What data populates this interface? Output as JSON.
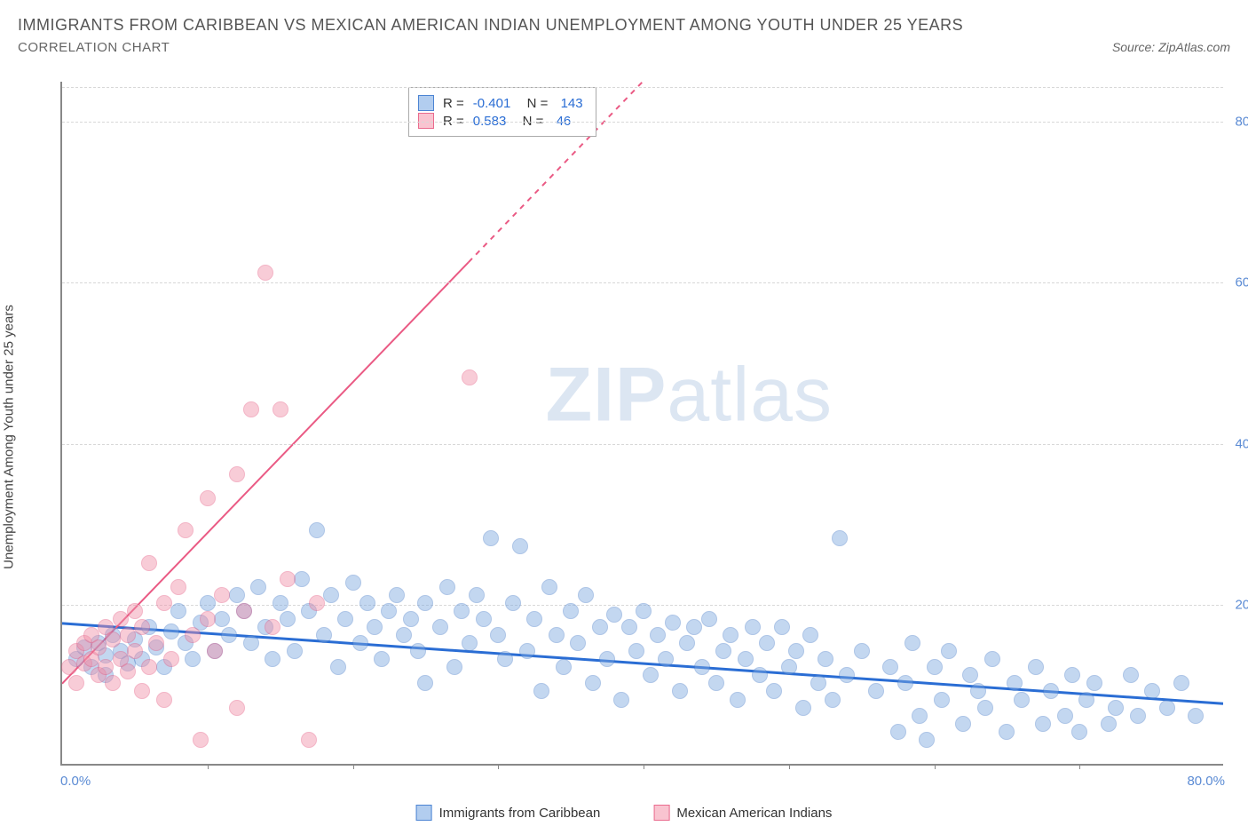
{
  "title": "IMMIGRANTS FROM CARIBBEAN VS MEXICAN AMERICAN INDIAN UNEMPLOYMENT AMONG YOUTH UNDER 25 YEARS",
  "subtitle": "CORRELATION CHART",
  "source": "Source: ZipAtlas.com",
  "ylabel": "Unemployment Among Youth under 25 years",
  "watermark_zip": "ZIP",
  "watermark_atlas": "atlas",
  "chart": {
    "type": "scatter",
    "xlim": [
      0,
      80
    ],
    "ylim": [
      0,
      85
    ],
    "x_min_label": "0.0%",
    "x_max_label": "80.0%",
    "yticks": [
      20,
      40,
      60,
      80
    ],
    "ytick_labels": [
      "20.0%",
      "40.0%",
      "60.0%",
      "80.0%"
    ],
    "xtick_positions": [
      10,
      20,
      30,
      40,
      50,
      60,
      70
    ],
    "background_color": "#ffffff",
    "grid_color": "#d8d8d8",
    "axis_color": "#888888",
    "point_radius": 9,
    "point_opacity": 0.45,
    "series": [
      {
        "name": "Immigrants from Caribbean",
        "fill_color": "#7ca8e0",
        "stroke_color": "#4c7fc9",
        "swatch_fill": "#b2cdef",
        "swatch_border": "#4c84d3",
        "r_label": "R =",
        "r_value": "-0.401",
        "n_label": "N =",
        "n_value": "143",
        "trend": {
          "x1": 0,
          "y1": 17.5,
          "x2": 80,
          "y2": 7.5,
          "color": "#2a6dd4",
          "width": 3,
          "dash": "none"
        },
        "points": [
          [
            1,
            13
          ],
          [
            1.5,
            14.5
          ],
          [
            2,
            12
          ],
          [
            2.5,
            15
          ],
          [
            3,
            13.5
          ],
          [
            3,
            11
          ],
          [
            3.5,
            16
          ],
          [
            4,
            14
          ],
          [
            4.5,
            12.5
          ],
          [
            5,
            15.5
          ],
          [
            5.5,
            13
          ],
          [
            6,
            17
          ],
          [
            6.5,
            14.5
          ],
          [
            7,
            12
          ],
          [
            7.5,
            16.5
          ],
          [
            8,
            19
          ],
          [
            8.5,
            15
          ],
          [
            9,
            13
          ],
          [
            9.5,
            17.5
          ],
          [
            10,
            20
          ],
          [
            10.5,
            14
          ],
          [
            11,
            18
          ],
          [
            11.5,
            16
          ],
          [
            12,
            21
          ],
          [
            12.5,
            19
          ],
          [
            13,
            15
          ],
          [
            13.5,
            22
          ],
          [
            14,
            17
          ],
          [
            14.5,
            13
          ],
          [
            15,
            20
          ],
          [
            15.5,
            18
          ],
          [
            16,
            14
          ],
          [
            16.5,
            23
          ],
          [
            17,
            19
          ],
          [
            17.5,
            29
          ],
          [
            18,
            16
          ],
          [
            18.5,
            21
          ],
          [
            19,
            12
          ],
          [
            19.5,
            18
          ],
          [
            20,
            22.5
          ],
          [
            20.5,
            15
          ],
          [
            21,
            20
          ],
          [
            21.5,
            17
          ],
          [
            22,
            13
          ],
          [
            22.5,
            19
          ],
          [
            23,
            21
          ],
          [
            23.5,
            16
          ],
          [
            24,
            18
          ],
          [
            24.5,
            14
          ],
          [
            25,
            20
          ],
          [
            25,
            10
          ],
          [
            26,
            17
          ],
          [
            26.5,
            22
          ],
          [
            27,
            12
          ],
          [
            27.5,
            19
          ],
          [
            28,
            15
          ],
          [
            28.5,
            21
          ],
          [
            29,
            18
          ],
          [
            29.5,
            28
          ],
          [
            30,
            16
          ],
          [
            30.5,
            13
          ],
          [
            31,
            20
          ],
          [
            31.5,
            27
          ],
          [
            32,
            14
          ],
          [
            32.5,
            18
          ],
          [
            33,
            9
          ],
          [
            33.5,
            22
          ],
          [
            34,
            16
          ],
          [
            34.5,
            12
          ],
          [
            35,
            19
          ],
          [
            35.5,
            15
          ],
          [
            36,
            21
          ],
          [
            36.5,
            10
          ],
          [
            37,
            17
          ],
          [
            37.5,
            13
          ],
          [
            38,
            18.5
          ],
          [
            38.5,
            8
          ],
          [
            39,
            17
          ],
          [
            39.5,
            14
          ],
          [
            40,
            19
          ],
          [
            40.5,
            11
          ],
          [
            41,
            16
          ],
          [
            41.5,
            13
          ],
          [
            42,
            17.5
          ],
          [
            42.5,
            9
          ],
          [
            43,
            15
          ],
          [
            43.5,
            17
          ],
          [
            44,
            12
          ],
          [
            44.5,
            18
          ],
          [
            45,
            10
          ],
          [
            45.5,
            14
          ],
          [
            46,
            16
          ],
          [
            46.5,
            8
          ],
          [
            47,
            13
          ],
          [
            47.5,
            17
          ],
          [
            48,
            11
          ],
          [
            48.5,
            15
          ],
          [
            49,
            9
          ],
          [
            49.5,
            17
          ],
          [
            50,
            12
          ],
          [
            50.5,
            14
          ],
          [
            51,
            7
          ],
          [
            51.5,
            16
          ],
          [
            52,
            10
          ],
          [
            52.5,
            13
          ],
          [
            53,
            8
          ],
          [
            53.5,
            28
          ],
          [
            54,
            11
          ],
          [
            55,
            14
          ],
          [
            56,
            9
          ],
          [
            57,
            12
          ],
          [
            57.5,
            4
          ],
          [
            58,
            10
          ],
          [
            58.5,
            15
          ],
          [
            59,
            6
          ],
          [
            59.5,
            3
          ],
          [
            60,
            12
          ],
          [
            60.5,
            8
          ],
          [
            61,
            14
          ],
          [
            62,
            5
          ],
          [
            62.5,
            11
          ],
          [
            63,
            9
          ],
          [
            63.5,
            7
          ],
          [
            64,
            13
          ],
          [
            65,
            4
          ],
          [
            65.5,
            10
          ],
          [
            66,
            8
          ],
          [
            67,
            12
          ],
          [
            67.5,
            5
          ],
          [
            68,
            9
          ],
          [
            69,
            6
          ],
          [
            69.5,
            11
          ],
          [
            70,
            4
          ],
          [
            70.5,
            8
          ],
          [
            71,
            10
          ],
          [
            72,
            5
          ],
          [
            72.5,
            7
          ],
          [
            73.5,
            11
          ],
          [
            74,
            6
          ],
          [
            75,
            9
          ],
          [
            76,
            7
          ],
          [
            77,
            10
          ],
          [
            78,
            6
          ]
        ]
      },
      {
        "name": "Mexican American Indians",
        "fill_color": "#f090a8",
        "stroke_color": "#e55b82",
        "swatch_fill": "#f9c4d0",
        "swatch_border": "#ea6b8e",
        "r_label": "R =",
        "r_value": "0.583",
        "n_label": "N =",
        "n_value": "46",
        "trend": {
          "x1": 0,
          "y1": 10,
          "x2": 40,
          "y2": 85,
          "color": "#ea5a84",
          "width": 2,
          "dash": "solid_then_dash",
          "solid_until_x": 28
        },
        "points": [
          [
            0.5,
            12
          ],
          [
            1,
            14
          ],
          [
            1,
            10
          ],
          [
            1.5,
            15
          ],
          [
            1.5,
            12.5
          ],
          [
            2,
            13
          ],
          [
            2,
            16
          ],
          [
            2.5,
            11
          ],
          [
            2.5,
            14.5
          ],
          [
            3,
            17
          ],
          [
            3,
            12
          ],
          [
            3.5,
            15.5
          ],
          [
            3.5,
            10
          ],
          [
            4,
            18
          ],
          [
            4,
            13
          ],
          [
            4.5,
            16
          ],
          [
            4.5,
            11.5
          ],
          [
            5,
            19
          ],
          [
            5,
            14
          ],
          [
            5.5,
            9
          ],
          [
            5.5,
            17
          ],
          [
            6,
            12
          ],
          [
            6,
            25
          ],
          [
            6.5,
            15
          ],
          [
            7,
            20
          ],
          [
            7,
            8
          ],
          [
            7.5,
            13
          ],
          [
            8,
            22
          ],
          [
            8.5,
            29
          ],
          [
            9,
            16
          ],
          [
            9.5,
            3
          ],
          [
            10,
            18
          ],
          [
            10,
            33
          ],
          [
            10.5,
            14
          ],
          [
            11,
            21
          ],
          [
            12,
            36
          ],
          [
            12,
            7
          ],
          [
            12.5,
            19
          ],
          [
            13,
            44
          ],
          [
            14,
            61
          ],
          [
            14.5,
            17
          ],
          [
            15,
            44
          ],
          [
            15.5,
            23
          ],
          [
            17,
            3
          ],
          [
            17.5,
            20
          ],
          [
            28,
            48
          ]
        ]
      }
    ]
  }
}
